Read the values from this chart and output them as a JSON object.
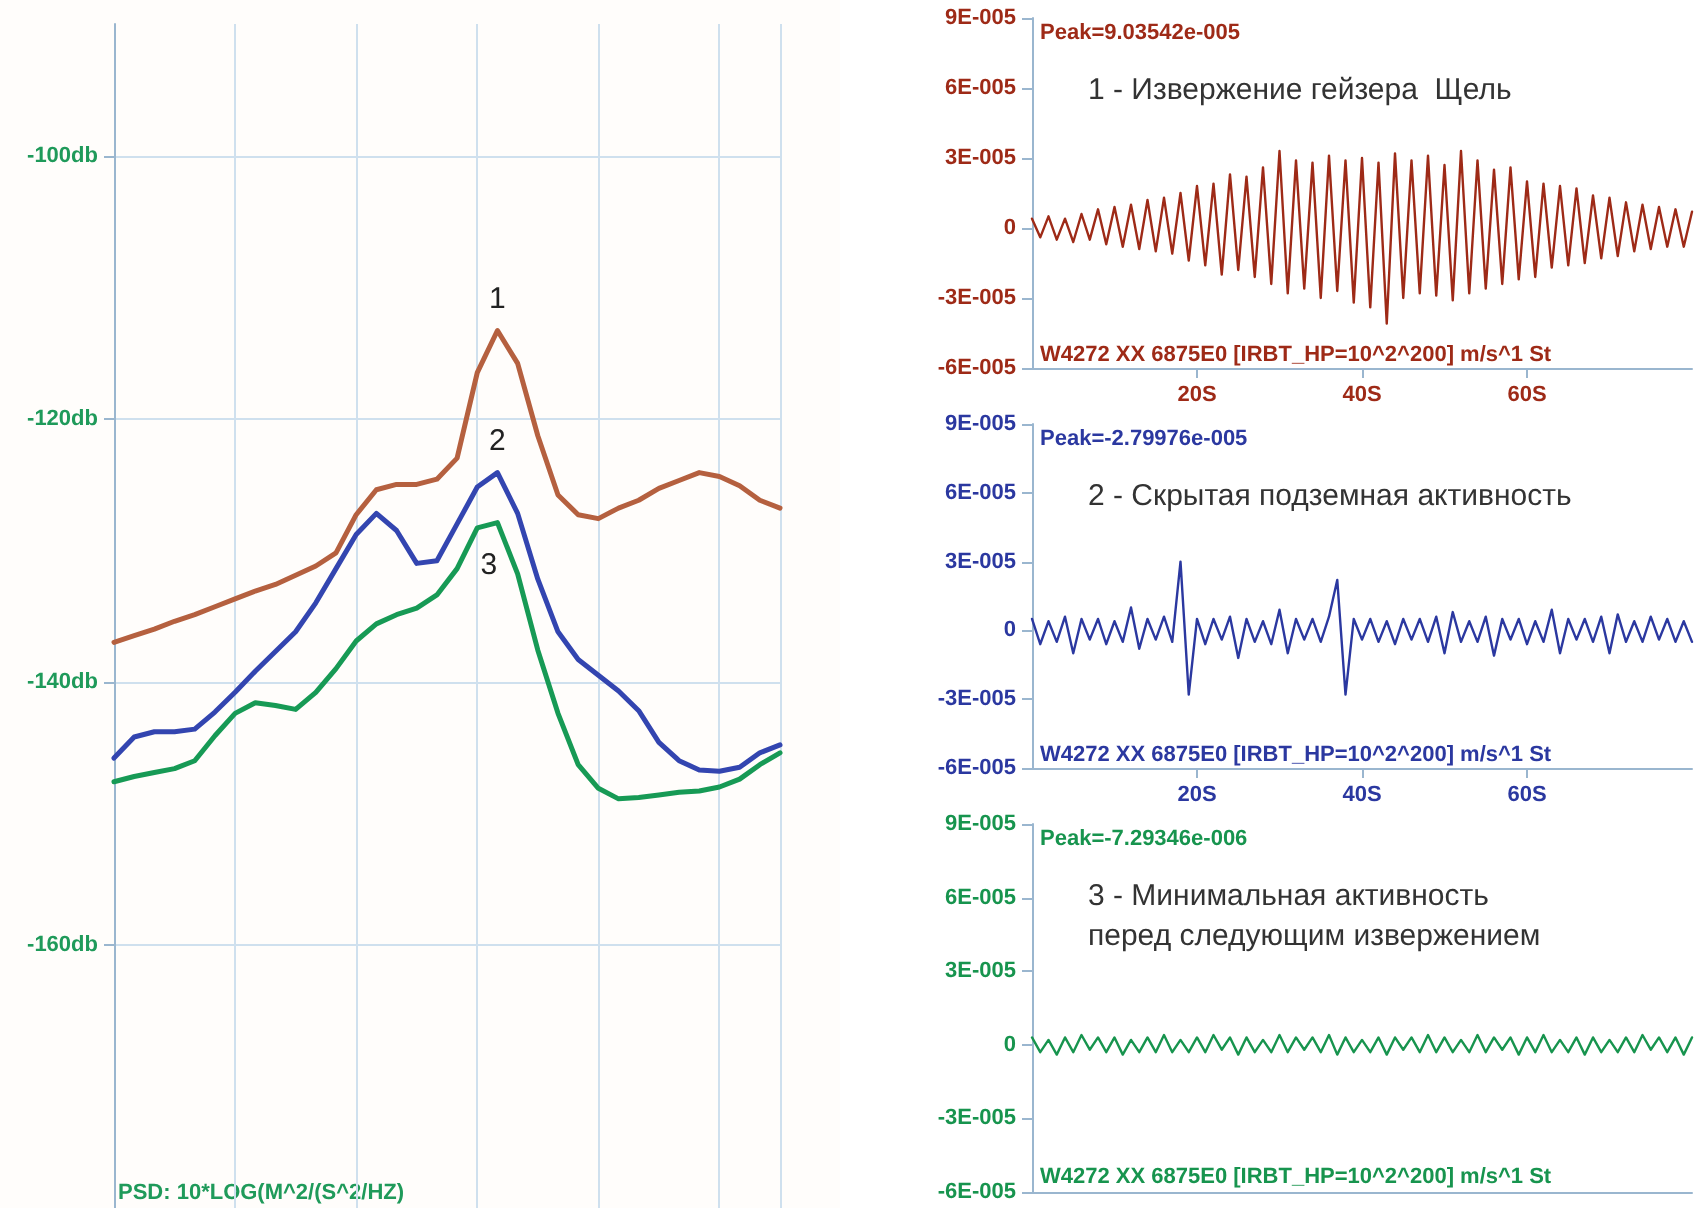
{
  "chart_data": [
    {
      "type": "line",
      "ylabel": "PSD: 10*LOG(M^2/(S^2/HZ)",
      "grid": true,
      "marker": "none",
      "tick_labels": "y",
      "categories": [
        null,
        null,
        null,
        null,
        null,
        null,
        null,
        null,
        null,
        null,
        null,
        null,
        null,
        null,
        null,
        null,
        null,
        null,
        null,
        null,
        null,
        null,
        null,
        null,
        null,
        null,
        null,
        null,
        null,
        null,
        null,
        null,
        null,
        null
      ],
      "ylim": [
        -180,
        -90
      ],
      "yticks": [
        {
          "value": -100,
          "label": "-100db"
        },
        {
          "value": -120,
          "label": "-120db"
        },
        {
          "value": -140,
          "label": "-140db"
        },
        {
          "value": -160,
          "label": "-160db"
        }
      ],
      "series": [
        {
          "name": "1",
          "color": "#b5603f",
          "values": [
            -137,
            -136.5,
            -136,
            -135.4,
            -134.9,
            -134.3,
            -133.7,
            -133.1,
            -132.6,
            -131.9,
            -131.2,
            -130.2,
            -127.3,
            -125.4,
            -125,
            -125,
            -124.6,
            -123,
            -116.5,
            -113.3,
            -115.8,
            -121.3,
            -125.8,
            -127.3,
            -127.6,
            -126.8,
            -126.2,
            -125.3,
            -124.7,
            -124.1,
            -124.4,
            -125.1,
            -126.2,
            -126.8
          ]
        },
        {
          "name": "2",
          "color": "#3345b0",
          "values": [
            -145.8,
            -144.2,
            -143.8,
            -143.8,
            -143.6,
            -142.3,
            -140.8,
            -139.2,
            -137.7,
            -136.2,
            -134,
            -131.4,
            -128.8,
            -127.2,
            -128.5,
            -131,
            -130.8,
            -128,
            -125.2,
            -124.1,
            -127.2,
            -132.2,
            -136.2,
            -138.3,
            -139.5,
            -140.7,
            -142.2,
            -144.6,
            -146,
            -146.7,
            -146.8,
            -146.5,
            -145.4,
            -144.8
          ]
        },
        {
          "name": "3",
          "color": "#179a55",
          "values": [
            -147.6,
            -147.2,
            -146.9,
            -146.6,
            -146,
            -144.1,
            -142.4,
            -141.6,
            -141.8,
            -142.1,
            -140.8,
            -139,
            -136.9,
            -135.6,
            -134.9,
            -134.4,
            -133.4,
            -131.4,
            -128.3,
            -127.9,
            -131.8,
            -137.6,
            -142.4,
            -146.3,
            -148.1,
            -148.9,
            -148.8,
            -148.6,
            -148.4,
            -148.3,
            -148,
            -147.4,
            -146.3,
            -145.4
          ]
        }
      ]
    },
    {
      "type": "line",
      "title": "1 - Извержение гейзера  Щель",
      "marker": "none",
      "annotations": [
        "Peak=9.03542e-005",
        "W4272 XX 6875E0 [IRBT_HP=10^2^200] m/s^1 St"
      ],
      "xlim": [
        0,
        80
      ],
      "xticks": [
        {
          "value": 20,
          "label": "20S"
        },
        {
          "value": 40,
          "label": "40S"
        },
        {
          "value": 60,
          "label": "60S"
        }
      ],
      "ylim": [
        -6e-05,
        9e-05
      ],
      "yticks": [
        {
          "value": -6e-05,
          "label": "-6E-005"
        },
        {
          "value": -3e-05,
          "label": "-3E-005"
        },
        {
          "value": 0,
          "label": "0"
        },
        {
          "value": 3e-05,
          "label": "3E-005"
        },
        {
          "value": 6e-05,
          "label": "6E-005"
        },
        {
          "value": 9e-05,
          "label": "9E-005"
        }
      ],
      "series": [
        {
          "color": "#9e2a17",
          "x": [
            0,
            1,
            2,
            3,
            4,
            5,
            6,
            7,
            8,
            9,
            10,
            11,
            12,
            13,
            14,
            15,
            16,
            17,
            18,
            19,
            20,
            21,
            22,
            23,
            24,
            25,
            26,
            27,
            28,
            29,
            30,
            31,
            32,
            33,
            34,
            35,
            36,
            37,
            38,
            39,
            40,
            41,
            42,
            43,
            44,
            45,
            46,
            47,
            48,
            49,
            50,
            51,
            52,
            53,
            54,
            55,
            56,
            57,
            58,
            59,
            60,
            61,
            62,
            63,
            64,
            65,
            66,
            67,
            68,
            69,
            70,
            71,
            72,
            73,
            74,
            75,
            76,
            77,
            78,
            79,
            80
          ],
          "values": [
            4e-06,
            -4e-06,
            5e-06,
            -5e-06,
            4e-06,
            -6e-06,
            6e-06,
            -5e-06,
            8e-06,
            -7e-06,
            9e-06,
            -8e-06,
            1e-05,
            -9e-06,
            1.2e-05,
            -1e-05,
            1.3e-05,
            -1.1e-05,
            1.5e-05,
            -1.4e-05,
            1.8e-05,
            -1.6e-05,
            1.9e-05,
            -2e-05,
            2.3e-05,
            -1.8e-05,
            2.2e-05,
            -2.1e-05,
            2.6e-05,
            -2.4e-05,
            3.3e-05,
            -2.8e-05,
            2.9e-05,
            -2.6e-05,
            2.8e-05,
            -3e-05,
            3.1e-05,
            -2.7e-05,
            2.9e-05,
            -3.2e-05,
            3e-05,
            -3.4e-05,
            2.8e-05,
            -4.1e-05,
            3.2e-05,
            -3e-05,
            2.9e-05,
            -2.8e-05,
            3.1e-05,
            -2.9e-05,
            2.7e-05,
            -3.1e-05,
            3.3e-05,
            -2.8e-05,
            2.9e-05,
            -2.6e-05,
            2.5e-05,
            -2.4e-05,
            2.6e-05,
            -2.2e-05,
            2e-05,
            -2.1e-05,
            1.9e-05,
            -1.7e-05,
            1.8e-05,
            -1.6e-05,
            1.7e-05,
            -1.5e-05,
            1.4e-05,
            -1.3e-05,
            1.3e-05,
            -1.2e-05,
            1.1e-05,
            -1e-05,
            1e-05,
            -9e-06,
            9e-06,
            -8e-06,
            8e-06,
            -8e-06,
            7e-06
          ]
        }
      ]
    },
    {
      "type": "line",
      "title": "2 - Скрытая подземная активность",
      "marker": "none",
      "annotations": [
        "Peak=-2.79976e-005",
        "W4272 XX 6875E0 [IRBT_HP=10^2^200] m/s^1 St"
      ],
      "xlim": [
        0,
        80
      ],
      "xticks": [
        {
          "value": 20,
          "label": "20S"
        },
        {
          "value": 40,
          "label": "40S"
        },
        {
          "value": 60,
          "label": "60S"
        }
      ],
      "ylim": [
        -6e-05,
        9e-05
      ],
      "yticks": [
        {
          "value": -6e-05,
          "label": "-6E-005"
        },
        {
          "value": -3e-05,
          "label": "-3E-005"
        },
        {
          "value": 0,
          "label": "0"
        },
        {
          "value": 3e-05,
          "label": "3E-005"
        },
        {
          "value": 6e-05,
          "label": "6E-005"
        },
        {
          "value": 9e-05,
          "label": "9E-005"
        }
      ],
      "series": [
        {
          "color": "#2b38a0",
          "x": [
            0,
            1,
            2,
            3,
            4,
            5,
            6,
            7,
            8,
            9,
            10,
            11,
            12,
            13,
            14,
            15,
            16,
            17,
            18,
            19,
            20,
            21,
            22,
            23,
            24,
            25,
            26,
            27,
            28,
            29,
            30,
            31,
            32,
            33,
            34,
            35,
            36,
            37,
            38,
            39,
            40,
            41,
            42,
            43,
            44,
            45,
            46,
            47,
            48,
            49,
            50,
            51,
            52,
            53,
            54,
            55,
            56,
            57,
            58,
            59,
            60,
            61,
            62,
            63,
            64,
            65,
            66,
            67,
            68,
            69,
            70,
            71,
            72,
            73,
            74,
            75,
            76,
            77,
            78,
            79,
            80
          ],
          "values": [
            5e-06,
            -6e-06,
            4e-06,
            -5e-06,
            6e-06,
            -1e-05,
            5e-06,
            -4e-06,
            5e-06,
            -6e-06,
            4e-06,
            -5e-06,
            1e-05,
            -8e-06,
            5e-06,
            -4e-06,
            6e-06,
            -5e-06,
            3e-05,
            -2.8e-05,
            5e-06,
            -6e-06,
            5e-06,
            -4e-06,
            6e-06,
            -1.2e-05,
            5e-06,
            -5e-06,
            4e-06,
            -6e-06,
            9e-06,
            -1e-05,
            5e-06,
            -4e-06,
            5e-06,
            -5e-06,
            6e-06,
            2.2e-05,
            -2.8e-05,
            5e-06,
            -4e-06,
            5e-06,
            -5e-06,
            4e-06,
            -6e-06,
            5e-06,
            -4e-06,
            5e-06,
            -5e-06,
            6e-06,
            -1e-05,
            8e-06,
            -5e-06,
            4e-06,
            -5e-06,
            6e-06,
            -1.1e-05,
            5e-06,
            -4e-06,
            5e-06,
            -6e-06,
            4e-06,
            -5e-06,
            9e-06,
            -1e-05,
            5e-06,
            -4e-06,
            5e-06,
            -5e-06,
            6e-06,
            -1e-05,
            7e-06,
            -5e-06,
            4e-06,
            -5e-06,
            6e-06,
            -4e-06,
            5e-06,
            -5e-06,
            4e-06,
            -5e-06
          ]
        }
      ]
    },
    {
      "type": "line",
      "title": "3 - Минимальная активность\nперед следующим извержением",
      "marker": "none",
      "tick_labels": "y",
      "annotations": [
        "Peak=-7.29346e-006",
        "W4272 XX 6875E0 [IRBT_HP=10^2^200] m/s^1 St"
      ],
      "xlim": [
        0,
        80
      ],
      "ylim": [
        -6e-05,
        9e-05
      ],
      "yticks": [
        {
          "value": -6e-05,
          "label": "-6E-005"
        },
        {
          "value": -3e-05,
          "label": "-3E-005"
        },
        {
          "value": 0,
          "label": "0"
        },
        {
          "value": 3e-05,
          "label": "3E-005"
        },
        {
          "value": 6e-05,
          "label": "6E-005"
        },
        {
          "value": 9e-05,
          "label": "9E-005"
        }
      ],
      "series": [
        {
          "color": "#17944e",
          "x": [
            0,
            1,
            2,
            3,
            4,
            5,
            6,
            7,
            8,
            9,
            10,
            11,
            12,
            13,
            14,
            15,
            16,
            17,
            18,
            19,
            20,
            21,
            22,
            23,
            24,
            25,
            26,
            27,
            28,
            29,
            30,
            31,
            32,
            33,
            34,
            35,
            36,
            37,
            38,
            39,
            40,
            41,
            42,
            43,
            44,
            45,
            46,
            47,
            48,
            49,
            50,
            51,
            52,
            53,
            54,
            55,
            56,
            57,
            58,
            59,
            60,
            61,
            62,
            63,
            64,
            65,
            66,
            67,
            68,
            69,
            70,
            71,
            72,
            73,
            74,
            75,
            76,
            77,
            78,
            79,
            80
          ],
          "values": [
            3e-06,
            -3e-06,
            2e-06,
            -4e-06,
            3e-06,
            -3e-06,
            4e-06,
            -2e-06,
            3e-06,
            -3e-06,
            3e-06,
            -4e-06,
            2e-06,
            -3e-06,
            3e-06,
            -3e-06,
            4e-06,
            -3e-06,
            2e-06,
            -3e-06,
            3e-06,
            -3e-06,
            4e-06,
            -2e-06,
            3e-06,
            -4e-06,
            3e-06,
            -3e-06,
            2e-06,
            -3e-06,
            4e-06,
            -3e-06,
            3e-06,
            -2e-06,
            3e-06,
            -3e-06,
            4e-06,
            -4e-06,
            3e-06,
            -3e-06,
            2e-06,
            -3e-06,
            3e-06,
            -4e-06,
            3e-06,
            -2e-06,
            3e-06,
            -3e-06,
            4e-06,
            -3e-06,
            3e-06,
            -3e-06,
            2e-06,
            -3e-06,
            4e-06,
            -3e-06,
            3e-06,
            -2e-06,
            3e-06,
            -4e-06,
            3e-06,
            -3e-06,
            4e-06,
            -3e-06,
            2e-06,
            -3e-06,
            3e-06,
            -4e-06,
            3e-06,
            -3e-06,
            2e-06,
            -3e-06,
            3e-06,
            -3e-06,
            4e-06,
            -2e-06,
            3e-06,
            -3e-06,
            3e-06,
            -4e-06,
            3e-06
          ]
        }
      ]
    }
  ]
}
